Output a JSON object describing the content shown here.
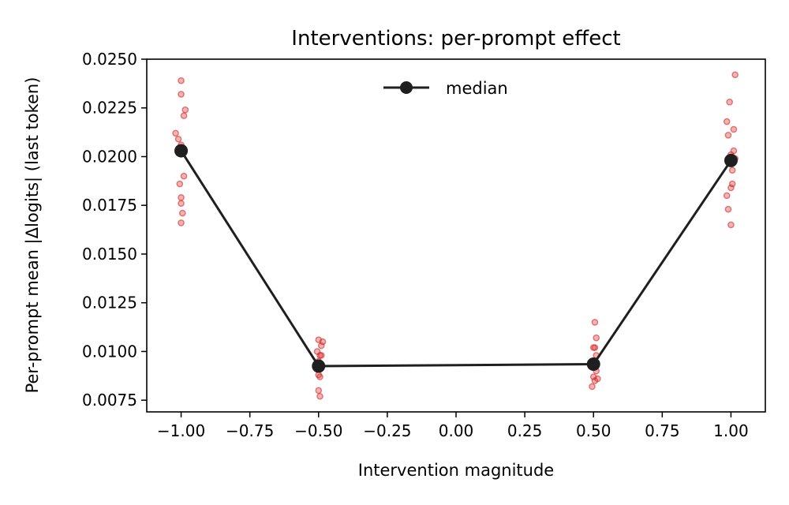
{
  "chart_data": {
    "type": "scatter",
    "title": "Interventions: per-prompt effect",
    "xlabel": "Intervention magnitude",
    "ylabel": "Per-prompt mean |Δlogits| (last token)",
    "xlim": [
      -1.125,
      1.125
    ],
    "ylim": [
      0.0069,
      0.025
    ],
    "x_ticks": [
      -1.0,
      -0.75,
      -0.5,
      -0.25,
      0.0,
      0.25,
      0.5,
      0.75,
      1.0
    ],
    "x_tick_labels": [
      "−1.00",
      "−0.75",
      "−0.50",
      "−0.25",
      "0.00",
      "0.25",
      "0.50",
      "0.75",
      "1.00"
    ],
    "y_ticks": [
      0.0075,
      0.01,
      0.0125,
      0.015,
      0.0175,
      0.02,
      0.0225,
      0.025
    ],
    "y_tick_labels": [
      "0.0075",
      "0.0100",
      "0.0125",
      "0.0150",
      "0.0175",
      "0.0200",
      "0.0225",
      "0.0250"
    ],
    "grid": false,
    "legend": {
      "placement": "top-center",
      "entries": [
        "median"
      ]
    },
    "colors": {
      "points": "#d62728",
      "median": "#1f1f1f"
    },
    "series": [
      {
        "kind": "per-prompt points",
        "points": [
          {
            "x": -1.0,
            "y": 0.0239
          },
          {
            "x": -1.0,
            "y": 0.0232
          },
          {
            "x": -0.985,
            "y": 0.0224
          },
          {
            "x": -0.99,
            "y": 0.0221
          },
          {
            "x": -1.02,
            "y": 0.0212
          },
          {
            "x": -1.01,
            "y": 0.0209
          },
          {
            "x": -1.0,
            "y": 0.0206
          },
          {
            "x": -0.995,
            "y": 0.0203
          },
          {
            "x": -0.99,
            "y": 0.019
          },
          {
            "x": -1.005,
            "y": 0.0186
          },
          {
            "x": -1.0,
            "y": 0.0179
          },
          {
            "x": -1.0,
            "y": 0.0176
          },
          {
            "x": -0.995,
            "y": 0.0171
          },
          {
            "x": -1.0,
            "y": 0.0166
          },
          {
            "x": -0.5,
            "y": 0.0106
          },
          {
            "x": -0.485,
            "y": 0.0105
          },
          {
            "x": -0.49,
            "y": 0.0103
          },
          {
            "x": -0.505,
            "y": 0.01
          },
          {
            "x": -0.495,
            "y": 0.0098
          },
          {
            "x": -0.49,
            "y": 0.0098
          },
          {
            "x": -0.5,
            "y": 0.0095
          },
          {
            "x": -0.505,
            "y": 0.0093
          },
          {
            "x": -0.49,
            "y": 0.0092
          },
          {
            "x": -0.5,
            "y": 0.0088
          },
          {
            "x": -0.495,
            "y": 0.0087
          },
          {
            "x": -0.5,
            "y": 0.008
          },
          {
            "x": -0.495,
            "y": 0.0077
          },
          {
            "x": 0.505,
            "y": 0.0115
          },
          {
            "x": 0.51,
            "y": 0.0107
          },
          {
            "x": 0.505,
            "y": 0.0102
          },
          {
            "x": 0.5,
            "y": 0.0102
          },
          {
            "x": 0.51,
            "y": 0.0098
          },
          {
            "x": 0.5,
            "y": 0.0095
          },
          {
            "x": 0.505,
            "y": 0.0093
          },
          {
            "x": 0.51,
            "y": 0.009
          },
          {
            "x": 0.5,
            "y": 0.0087
          },
          {
            "x": 0.515,
            "y": 0.0086
          },
          {
            "x": 0.505,
            "y": 0.0085
          },
          {
            "x": 0.495,
            "y": 0.0082
          },
          {
            "x": 1.015,
            "y": 0.0242
          },
          {
            "x": 0.995,
            "y": 0.0228
          },
          {
            "x": 0.985,
            "y": 0.0218
          },
          {
            "x": 1.01,
            "y": 0.0214
          },
          {
            "x": 0.99,
            "y": 0.0211
          },
          {
            "x": 1.01,
            "y": 0.0203
          },
          {
            "x": 1.0,
            "y": 0.0201
          },
          {
            "x": 1.015,
            "y": 0.0199
          },
          {
            "x": 0.995,
            "y": 0.0197
          },
          {
            "x": 1.005,
            "y": 0.0193
          },
          {
            "x": 1.005,
            "y": 0.0186
          },
          {
            "x": 1.0,
            "y": 0.0184
          },
          {
            "x": 0.985,
            "y": 0.018
          },
          {
            "x": 0.99,
            "y": 0.0173
          },
          {
            "x": 1.0,
            "y": 0.0165
          }
        ]
      },
      {
        "name": "median",
        "kind": "line-with-markers",
        "points": [
          {
            "x": -1.0,
            "y": 0.0203
          },
          {
            "x": -0.5,
            "y": 0.00925
          },
          {
            "x": 0.5,
            "y": 0.00935
          },
          {
            "x": 1.0,
            "y": 0.0198
          }
        ]
      }
    ]
  }
}
